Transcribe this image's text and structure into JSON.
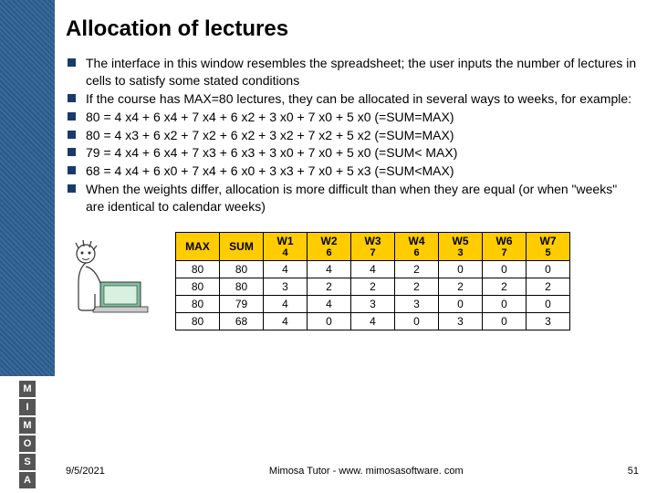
{
  "title": "Allocation of lectures",
  "bullets": [
    "The interface in this window resembles the spreadsheet; the user inputs the number of lectures in cells to satisfy some stated conditions",
    "If the course has MAX=80 lectures, they can be allocated in several ways to weeks, for example:",
    "80 = 4 x4 + 6 x4 + 7 x4 + 6 x2 + 3 x0 + 7 x0 + 5 x0 (=SUM=MAX)",
    "80 = 4 x3 + 6 x2 + 7 x2 + 6 x2 + 3 x2 + 7 x2 + 5 x2 (=SUM=MAX)",
    "79 = 4 x4 + 6 x4 + 7 x3 + 6 x3 + 3 x0 + 7 x0 + 5 x0 (=SUM< MAX)",
    "68 = 4 x4 + 6 x0 + 7 x4 + 6 x0 + 3 x3 + 7 x0 + 5 x3  (=SUM<MAX)",
    "When the weights differ, allocation is more difficult than when they are equal (or when \"weeks\" are identical to calendar weeks)"
  ],
  "table": {
    "colors": {
      "header_bg": "#ffcc00",
      "border": "#000000",
      "cell_bg": "#ffffff"
    },
    "fixed_cols": [
      "MAX",
      "SUM"
    ],
    "week_cols": [
      {
        "label": "W1",
        "weight": "4"
      },
      {
        "label": "W2",
        "weight": "6"
      },
      {
        "label": "W3",
        "weight": "7"
      },
      {
        "label": "W4",
        "weight": "6"
      },
      {
        "label": "W5",
        "weight": "3"
      },
      {
        "label": "W6",
        "weight": "7"
      },
      {
        "label": "W7",
        "weight": "5"
      }
    ],
    "rows": [
      {
        "max": "80",
        "sum": "80",
        "cells": [
          "4",
          "4",
          "4",
          "2",
          "0",
          "0",
          "0"
        ]
      },
      {
        "max": "80",
        "sum": "80",
        "cells": [
          "3",
          "2",
          "2",
          "2",
          "2",
          "2",
          "2"
        ]
      },
      {
        "max": "80",
        "sum": "79",
        "cells": [
          "4",
          "4",
          "3",
          "3",
          "0",
          "0",
          "0"
        ]
      },
      {
        "max": "80",
        "sum": "68",
        "cells": [
          "4",
          "0",
          "4",
          "0",
          "3",
          "0",
          "3"
        ]
      }
    ]
  },
  "logo_letters": [
    "M",
    "I",
    "M",
    "O",
    "S",
    "A"
  ],
  "footer": {
    "date": "9/5/2021",
    "center": "Mimosa Tutor - www. mimosasoftware. com",
    "page": "51"
  },
  "colors": {
    "bullet_square": "#1a3a6a",
    "sidebar_a": "#2a5a8a",
    "sidebar_b": "#3a6a9a",
    "title": "#000000"
  }
}
